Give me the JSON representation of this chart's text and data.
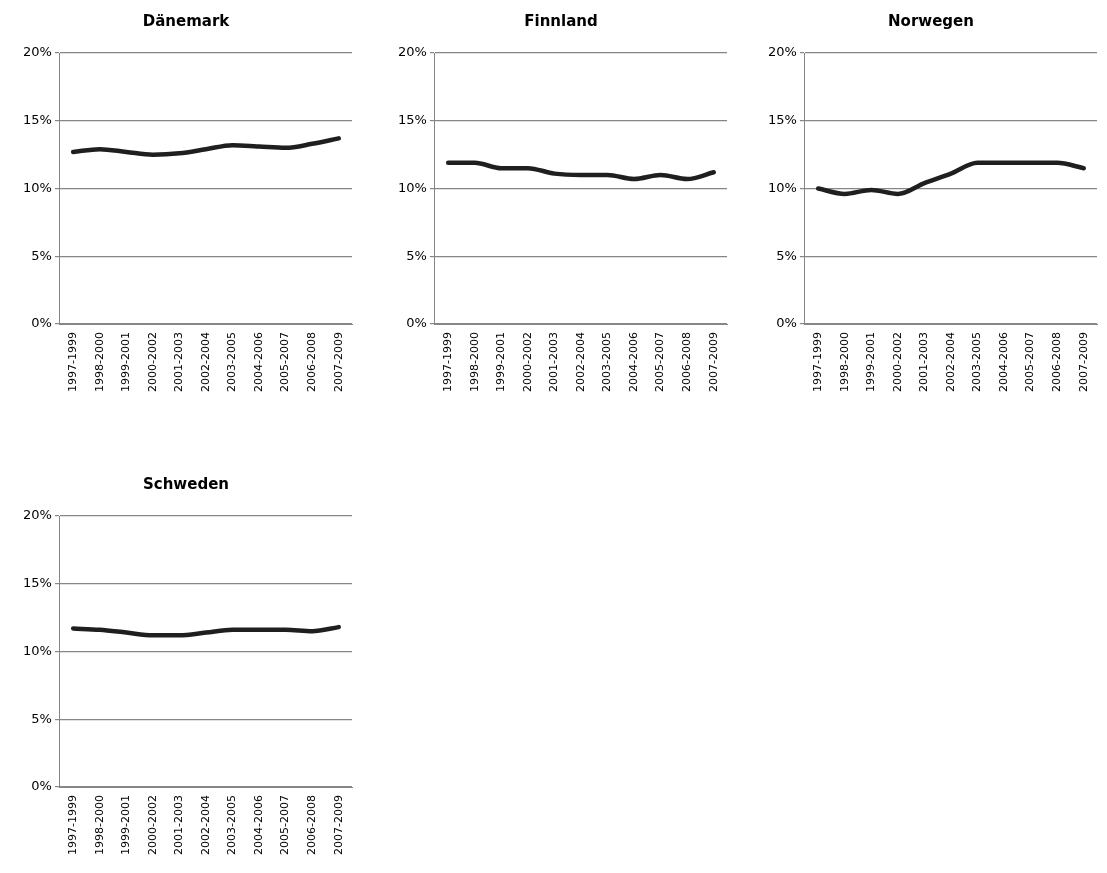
{
  "chart_data": [
    {
      "type": "line",
      "title": "Dänemark",
      "categories": [
        "1997-1999",
        "1998-2000",
        "1999-2001",
        "2000-2002",
        "2001-2003",
        "2002-2004",
        "2003-2005",
        "2004-2006",
        "2005-2007",
        "2006-2008",
        "2007-2009"
      ],
      "ylim": [
        0,
        20
      ],
      "yticks": [
        {
          "value": 0,
          "label": "0%"
        },
        {
          "value": 5,
          "label": "5%"
        },
        {
          "value": 10,
          "label": "10%"
        },
        {
          "value": 15,
          "label": "15%"
        },
        {
          "value": 20,
          "label": "20%"
        }
      ],
      "grid": "y",
      "marker": "none",
      "series": [
        {
          "color": "#1f1f1f",
          "values": [
            12.7,
            12.9,
            12.7,
            12.5,
            12.6,
            12.9,
            13.2,
            13.1,
            13.0,
            13.3,
            13.7
          ]
        }
      ]
    },
    {
      "type": "line",
      "title": "Finnland",
      "categories": [
        "1997-1999",
        "1998-2000",
        "1999-2001",
        "2000-2002",
        "2001-2003",
        "2002-2004",
        "2003-2005",
        "2004-2006",
        "2005-2007",
        "2006-2008",
        "2007-2009"
      ],
      "ylim": [
        0,
        20
      ],
      "yticks": [
        {
          "value": 0,
          "label": "0%"
        },
        {
          "value": 5,
          "label": "5%"
        },
        {
          "value": 10,
          "label": "10%"
        },
        {
          "value": 15,
          "label": "15%"
        },
        {
          "value": 20,
          "label": "20%"
        }
      ],
      "grid": "y",
      "marker": "none",
      "series": [
        {
          "color": "#1f1f1f",
          "values": [
            11.9,
            11.9,
            11.5,
            11.5,
            11.1,
            11.0,
            11.0,
            10.7,
            11.0,
            10.7,
            11.2
          ]
        }
      ]
    },
    {
      "type": "line",
      "title": "Norwegen",
      "categories": [
        "1997-1999",
        "1998-2000",
        "1999-2001",
        "2000-2002",
        "2001-2003",
        "2002-2004",
        "2003-2005",
        "2004-2006",
        "2005-2007",
        "2006-2008",
        "2007-2009"
      ],
      "ylim": [
        0,
        20
      ],
      "yticks": [
        {
          "value": 0,
          "label": "0%"
        },
        {
          "value": 5,
          "label": "5%"
        },
        {
          "value": 10,
          "label": "10%"
        },
        {
          "value": 15,
          "label": "15%"
        },
        {
          "value": 20,
          "label": "20%"
        }
      ],
      "grid": "y",
      "marker": "none",
      "series": [
        {
          "color": "#1f1f1f",
          "values": [
            10.0,
            9.6,
            9.9,
            9.6,
            10.4,
            11.1,
            11.9,
            11.9,
            11.9,
            11.9,
            11.5
          ]
        }
      ]
    },
    {
      "type": "line",
      "title": "Schweden",
      "categories": [
        "1997-1999",
        "1998-2000",
        "1999-2001",
        "2000-2002",
        "2001-2003",
        "2002-2004",
        "2003-2005",
        "2004-2006",
        "2005-2007",
        "2006-2008",
        "2007-2009"
      ],
      "ylim": [
        0,
        20
      ],
      "yticks": [
        {
          "value": 0,
          "label": "0%"
        },
        {
          "value": 5,
          "label": "5%"
        },
        {
          "value": 10,
          "label": "10%"
        },
        {
          "value": 15,
          "label": "15%"
        },
        {
          "value": 20,
          "label": "20%"
        }
      ],
      "grid": "y",
      "marker": "none",
      "series": [
        {
          "color": "#1f1f1f",
          "values": [
            11.7,
            11.6,
            11.4,
            11.2,
            11.2,
            11.4,
            11.6,
            11.6,
            11.6,
            11.5,
            11.8
          ]
        }
      ]
    }
  ]
}
